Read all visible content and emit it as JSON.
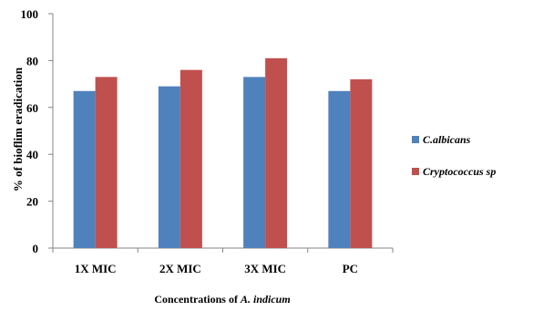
{
  "chart_data": {
    "type": "bar",
    "categories": [
      "1X MIC",
      "2X MIC",
      "3X MIC",
      "PC"
    ],
    "series": [
      {
        "name": "C.albicans",
        "color": "#4f81bd",
        "values": [
          67,
          69,
          73,
          67
        ]
      },
      {
        "name": "Cryptococcus sp",
        "color": "#c0504d",
        "values": [
          73,
          76,
          81,
          72
        ]
      }
    ],
    "ylim": [
      0,
      100
    ],
    "yticks": [
      0,
      20,
      40,
      60,
      80,
      100
    ],
    "ylabel": "% of bioflim eradication",
    "xlabel_prefix": "Concentrations of ",
    "xlabel_italic": "A. indicum",
    "legend_position": "right",
    "grid": false
  }
}
